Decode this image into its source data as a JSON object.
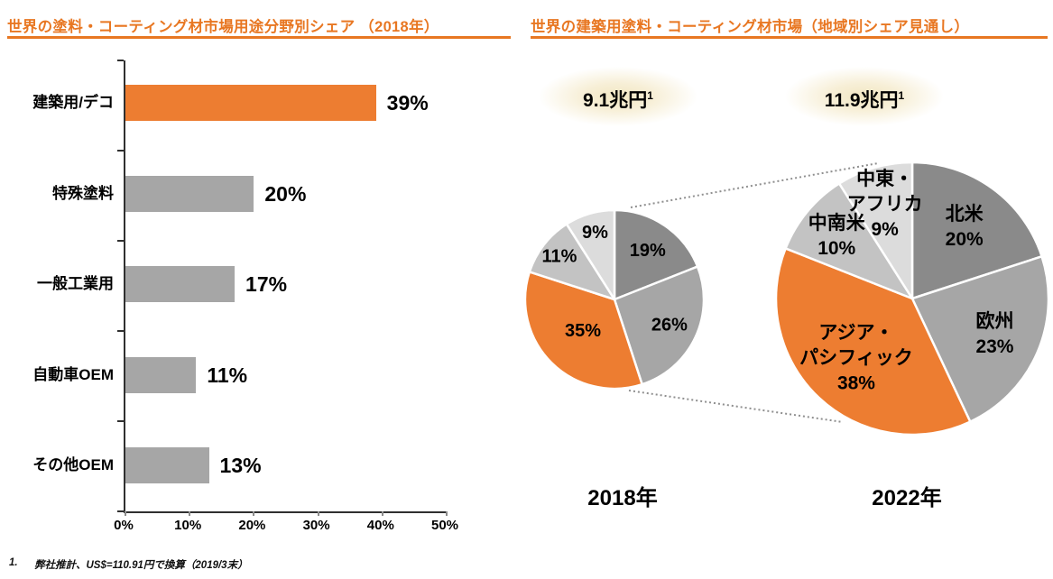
{
  "page": {
    "accent_color": "#E87722",
    "footnote_number": "1.",
    "footnote_text": "弊社推計、US$=110.91円で換算（2019/3末）"
  },
  "left_panel": {
    "title": "世界の塗料・コーティング材市場用途分野別シェア （2018年）"
  },
  "right_panel": {
    "title": "世界の建築用塗料・コーティング材市場（地域別シェア見通し）"
  },
  "chart_data": [
    {
      "type": "bar",
      "orientation": "horizontal",
      "title": "世界の塗料・コーティング材市場用途分野別シェア（2018年）",
      "categories": [
        "建築用/デコ",
        "特殊塗料",
        "一般工業用",
        "自動車OEM",
        "その他OEM"
      ],
      "values": [
        39,
        20,
        17,
        11,
        13
      ],
      "value_labels": [
        "39%",
        "20%",
        "17%",
        "11%",
        "13%"
      ],
      "colors": [
        "#ED7D31",
        "#A6A6A6",
        "#A6A6A6",
        "#A6A6A6",
        "#A6A6A6"
      ],
      "xlabel": "",
      "ylabel": "",
      "xlim": [
        0,
        50
      ],
      "x_ticks": [
        0,
        10,
        20,
        30,
        40,
        50
      ],
      "x_tick_labels": [
        "0%",
        "10%",
        "20%",
        "30%",
        "40%",
        "50%"
      ],
      "grid": false
    },
    {
      "type": "pie",
      "year": "2018年",
      "total": "9.1兆円",
      "total_footnote_ref": "1",
      "start_angle": "top",
      "direction": "clockwise",
      "slices": [
        {
          "label": "",
          "value": 19,
          "display": "19%",
          "color": "#8A8A8A"
        },
        {
          "label": "",
          "value": 26,
          "display": "26%",
          "color": "#A6A6A6"
        },
        {
          "label": "",
          "value": 35,
          "display": "35%",
          "color": "#ED7D31"
        },
        {
          "label": "",
          "value": 11,
          "display": "11%",
          "color": "#C3C3C3"
        },
        {
          "label": "",
          "value": 9,
          "display": "9%",
          "color": "#DCDCDC"
        }
      ]
    },
    {
      "type": "pie",
      "year": "2022年",
      "total": "11.9兆円",
      "total_footnote_ref": "1",
      "start_angle": "top",
      "direction": "clockwise",
      "slices": [
        {
          "label": "北米",
          "label_lines": [
            "北米"
          ],
          "value": 20,
          "display": "20%",
          "color": "#8A8A8A"
        },
        {
          "label": "欧州",
          "label_lines": [
            "欧州"
          ],
          "value": 23,
          "display": "23%",
          "color": "#A6A6A6"
        },
        {
          "label": "アジア・パシフィック",
          "label_lines": [
            "アジア・",
            "パシフィック"
          ],
          "value": 38,
          "display": "38%",
          "color": "#ED7D31"
        },
        {
          "label": "中南米",
          "label_lines": [
            "中南米"
          ],
          "value": 10,
          "display": "10%",
          "color": "#C3C3C3"
        },
        {
          "label": "中東・アフリカ",
          "label_lines": [
            "中東・",
            "アフリカ"
          ],
          "value": 9,
          "display": "9%",
          "color": "#DCDCDC"
        }
      ]
    }
  ]
}
